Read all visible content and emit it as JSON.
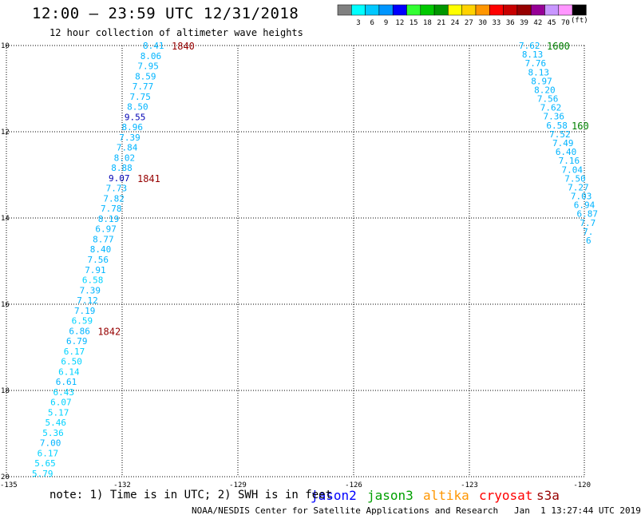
{
  "header": {
    "title": "12:00 — 23:59 UTC 12/31/2018",
    "subtitle": "12 hour collection of altimeter wave heights"
  },
  "legend": {
    "unit": "(ft)",
    "swatches": [
      {
        "color": "#808080",
        "label": ""
      },
      {
        "color": "#00ffff",
        "label": "3"
      },
      {
        "color": "#00c8ff",
        "label": "6"
      },
      {
        "color": "#0096ff",
        "label": "9"
      },
      {
        "color": "#0000ff",
        "label": "12"
      },
      {
        "color": "#32ff32",
        "label": "15"
      },
      {
        "color": "#00c800",
        "label": "18"
      },
      {
        "color": "#009600",
        "label": "21"
      },
      {
        "color": "#ffff00",
        "label": "24"
      },
      {
        "color": "#ffd200",
        "label": "27"
      },
      {
        "color": "#ff9600",
        "label": "30"
      },
      {
        "color": "#ff0000",
        "label": "33"
      },
      {
        "color": "#c80000",
        "label": "36"
      },
      {
        "color": "#960000",
        "label": "39"
      },
      {
        "color": "#960096",
        "label": "42"
      },
      {
        "color": "#c896ff",
        "label": "45"
      },
      {
        "color": "#ff96ff",
        "label": "70"
      },
      {
        "color": "#000000",
        "label": ""
      }
    ]
  },
  "axes": {
    "lat_ticks": [
      "10",
      "12",
      "14",
      "16",
      "18",
      "20"
    ],
    "lon_ticks": [
      "-135",
      "-132",
      "-129",
      "-126",
      "-123",
      "-120"
    ]
  },
  "track1": {
    "color": "#00b4ff",
    "readings": [
      "8.41",
      "8.06",
      "7.95",
      "8.59",
      "7.77",
      "7.75",
      "8.50",
      "9.55",
      "8.96",
      "7.39",
      "7.84",
      "8.02",
      "8.88",
      "9.07",
      "7.73",
      "7.82",
      "7.78",
      "8.19",
      "6.97",
      "8.77",
      "8.40",
      "7.56",
      "7.91",
      "6.58",
      "7.39",
      "7.12",
      "7.19",
      "6.59",
      "6.86",
      "6.79",
      "6.17",
      "6.50",
      "6.14",
      "6.61",
      "6.43",
      "6.07",
      "5.17",
      "5.46",
      "5.36",
      "7.00",
      "6.17",
      "5.65",
      "5.79"
    ],
    "blue_index": [
      7,
      13
    ],
    "times": [
      {
        "label": "1840",
        "index": 0
      },
      {
        "label": "1841",
        "index": 13
      },
      {
        "label": "1842",
        "index": 28
      }
    ]
  },
  "track2": {
    "color": "#00b4ff",
    "readings": [
      "7.62",
      "8.13",
      "7.76",
      "8.13",
      "8.97",
      "8.20",
      "7.56",
      "7.62",
      "7.36",
      "6.58",
      "7.52",
      "7.49",
      "6.40",
      "7.16",
      "7.04",
      "7.50",
      "7.27",
      "7.03",
      "6.94",
      "6.87",
      "7.7",
      "7.",
      "6"
    ],
    "times": [
      {
        "label": "1600",
        "index": 0
      },
      {
        "label": "160",
        "index": 9
      }
    ]
  },
  "footer": {
    "note": "note: 1) Time is in UTC; 2) SWH is in feet",
    "satellites": [
      {
        "name": "jason2",
        "color": "#0000ff"
      },
      {
        "name": "jason3",
        "color": "#00a000"
      },
      {
        "name": "altika",
        "color": "#ff9600"
      },
      {
        "name": "cryosat",
        "color": "#ff0000"
      },
      {
        "name": "s3a",
        "color": "#960000"
      }
    ],
    "credit": "NOAA/NESDIS Center for Satellite Applications and Research   Jan  1 13:27:44 UTC 2019"
  }
}
